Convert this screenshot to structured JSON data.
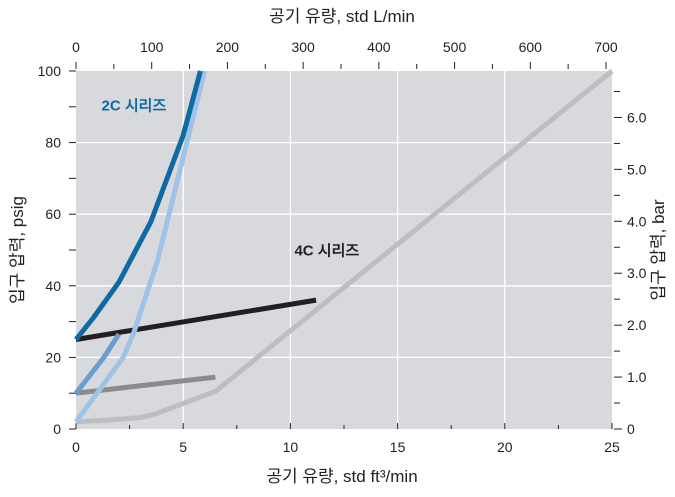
{
  "chart_data": {
    "type": "line",
    "title": "",
    "xlabel_bottom": "공기 유량, std ft³/min",
    "xlabel_top": "공기 유량, std L/min",
    "ylabel_left": "입구 압력, psig",
    "ylabel_right": "입구 압력, bar",
    "xlim": [
      0,
      25
    ],
    "ylim": [
      0,
      100
    ],
    "x_ticks": [
      "0",
      "5",
      "10",
      "15",
      "20",
      "25"
    ],
    "y_ticks": [
      "0",
      "20",
      "40",
      "60",
      "80",
      "100"
    ],
    "top_ticks": [
      "0",
      "100",
      "200",
      "300",
      "400",
      "500",
      "600",
      "700"
    ],
    "top_tick_values_lpm": [
      0,
      100,
      200,
      300,
      400,
      500,
      600,
      700
    ],
    "right_ticks": [
      "0",
      "1.0",
      "2.0",
      "3.0",
      "4.0",
      "5.0",
      "6.0"
    ],
    "right_tick_values_bar": [
      0,
      1,
      2,
      3,
      4,
      5,
      6
    ],
    "grid": true,
    "background_color": "#d8d9dc",
    "grid_color": "#ffffff",
    "annotations": [
      {
        "text": "2C 시리즈",
        "x": 2.7,
        "y": 89,
        "color": "#0f6aa3"
      },
      {
        "text": "4C 시리즈",
        "x": 11.7,
        "y": 48.5,
        "color": "#231f20"
      }
    ],
    "series": [
      {
        "color": "#bdbec0",
        "points": [
          [
            0,
            2
          ],
          [
            1.5,
            2.5
          ],
          [
            3.0,
            3.2
          ],
          [
            3.6,
            4
          ],
          [
            6.5,
            10.5
          ],
          [
            25,
            100
          ]
        ]
      },
      {
        "color": "#231f20",
        "points": [
          [
            0,
            25
          ],
          [
            11.2,
            36
          ]
        ]
      },
      {
        "color": "#8a8b8d",
        "points": [
          [
            0,
            10
          ],
          [
            6.5,
            14.5
          ]
        ]
      },
      {
        "color": "#6c9dcf",
        "points": [
          [
            0,
            10
          ],
          [
            1.3,
            20
          ],
          [
            2.0,
            26.5
          ]
        ]
      },
      {
        "color": "#9ec3e6",
        "points": [
          [
            0,
            2
          ],
          [
            2.2,
            20
          ],
          [
            2.7,
            27
          ],
          [
            3.8,
            47
          ],
          [
            6.0,
            100
          ]
        ]
      },
      {
        "color": "#0f6aa3",
        "points": [
          [
            0,
            25
          ],
          [
            0.8,
            31
          ],
          [
            2.0,
            41
          ],
          [
            3.5,
            58
          ],
          [
            5.0,
            82
          ],
          [
            5.8,
            100
          ]
        ]
      }
    ]
  }
}
